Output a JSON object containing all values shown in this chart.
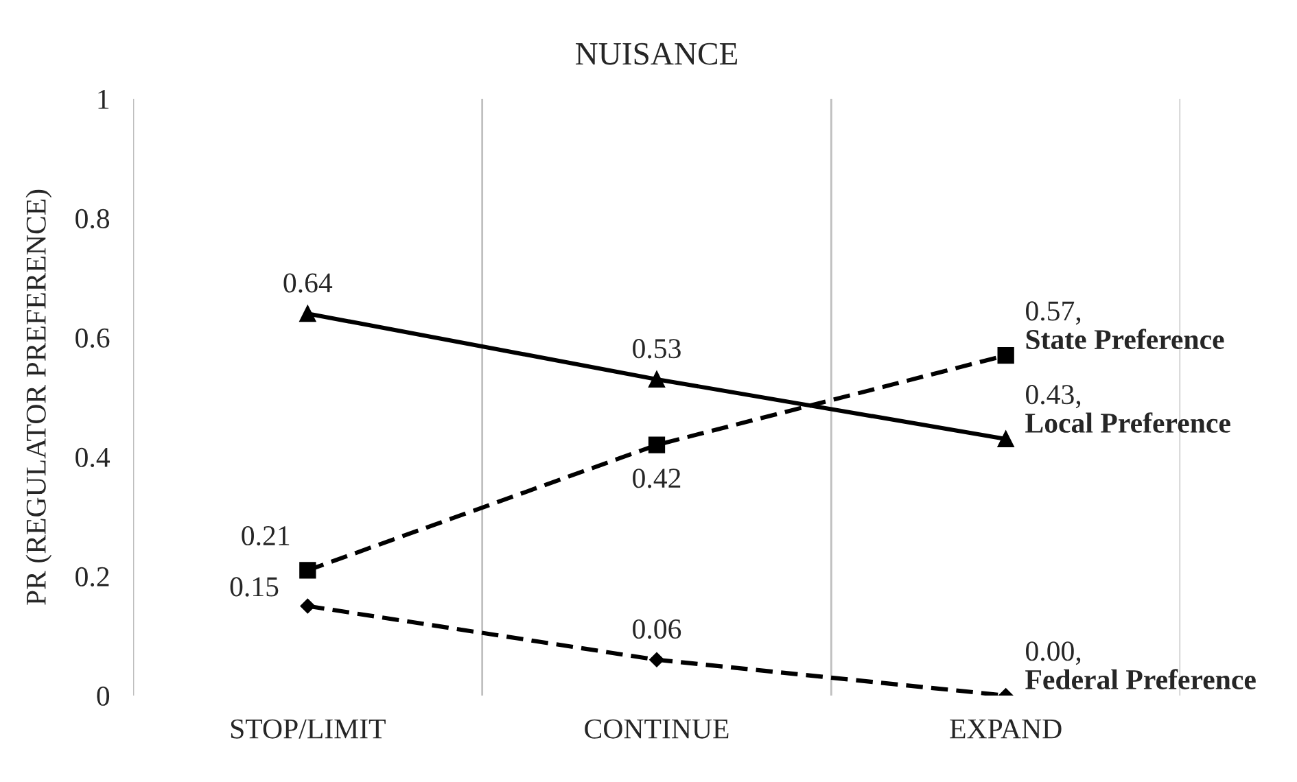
{
  "chart_data": {
    "type": "line",
    "title": "NUISANCE",
    "ylabel": "PR (REGULATOR PREFERENCE)",
    "categories": [
      "STOP/LIMIT",
      "CONTINUE",
      "EXPAND"
    ],
    "series": [
      {
        "name": "Local Preference",
        "color": "#000000",
        "values": [
          0.64,
          0.53,
          0.43
        ],
        "marker": "triangle",
        "line_style": "solid",
        "value_labels": [
          "0.64",
          "0.53",
          "0.43,"
        ]
      },
      {
        "name": "State Preference",
        "color": "#000000",
        "values": [
          0.21,
          0.42,
          0.57
        ],
        "marker": "square",
        "line_style": "dashed",
        "value_labels": [
          "0.21",
          "0.42",
          "0.57,"
        ]
      },
      {
        "name": "Federal Preference",
        "color": "#000000",
        "values": [
          0.15,
          0.06,
          0.0
        ],
        "marker": "diamond",
        "line_style": "dashed",
        "value_labels": [
          "0.15",
          "0.06",
          "0.00,"
        ]
      }
    ],
    "ylim": [
      0,
      1
    ],
    "yticks": [
      0,
      0.2,
      0.4,
      0.6,
      0.8,
      1
    ],
    "grid": "x",
    "legend": false
  }
}
